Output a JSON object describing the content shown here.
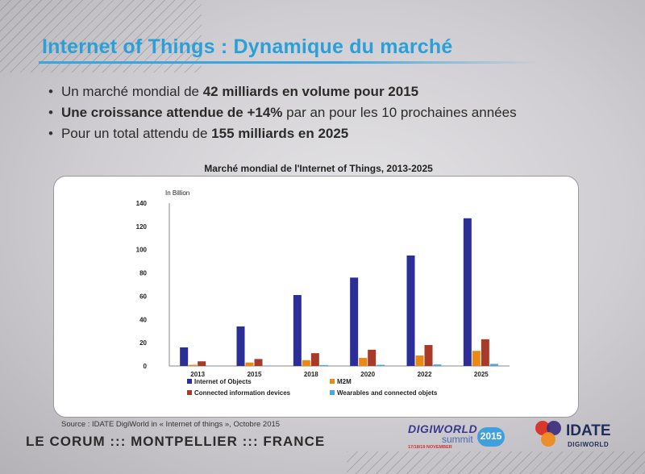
{
  "slide": {
    "title": "Internet of Things : Dynamique du marché",
    "bullets": [
      {
        "pre": "Un marché mondial de ",
        "bold": "42 milliards en volume pour 2015",
        "post": ""
      },
      {
        "pre": "",
        "bold": "Une croissance attendue de +14%",
        "post": " par an pour les 10 prochaines années"
      },
      {
        "pre": "Pour un total attendu de ",
        "bold": "155 milliards en 2025",
        "post": ""
      }
    ],
    "source": "Source : IDATE DigiWorld in « Internet of things », Octobre 2015",
    "footer_place": "LE CORUM ::: MONTPELLIER ::: FRANCE"
  },
  "logos": {
    "digiworld_name": "DIGIWORLD",
    "digiworld_summit": "summit",
    "digiworld_year": "2015",
    "digiworld_dates": "17/18/19 NOVEMBER",
    "idate_name": "IDATE",
    "idate_sub": "DIGIWORLD"
  },
  "colors": {
    "title_blue": "#2aa0d8",
    "internet_of_objects": "#2b2e96",
    "m2m": "#e88a14",
    "connected_information_devices": "#a83a28",
    "wearables_and_connected_objets": "#4aa8e0"
  },
  "chart_data": {
    "type": "bar",
    "title": "Marché mondial de l'Internet of Things, 2013-2025",
    "ylabel": "In Billion",
    "ylim": [
      0,
      140
    ],
    "yticks": [
      0,
      20,
      40,
      60,
      80,
      100,
      120,
      140
    ],
    "categories": [
      "2013",
      "2015",
      "2018",
      "2020",
      "2022",
      "2025"
    ],
    "series": [
      {
        "name": "Internet of Objects",
        "color": "#2b2e96",
        "values": [
          16,
          34,
          61,
          76,
          95,
          127
        ]
      },
      {
        "name": "M2M",
        "color": "#e88a14",
        "values": [
          1,
          3,
          5,
          7,
          9,
          13
        ]
      },
      {
        "name": "Connected information devices",
        "color": "#a83a28",
        "values": [
          4,
          6,
          11,
          14,
          18,
          23
        ]
      },
      {
        "name": "Wearables and connected objets",
        "color": "#4aa8e0",
        "values": [
          0.2,
          0.4,
          0.8,
          1,
          1.3,
          1.8
        ]
      }
    ],
    "legend_position": "bottom",
    "grid": false
  }
}
